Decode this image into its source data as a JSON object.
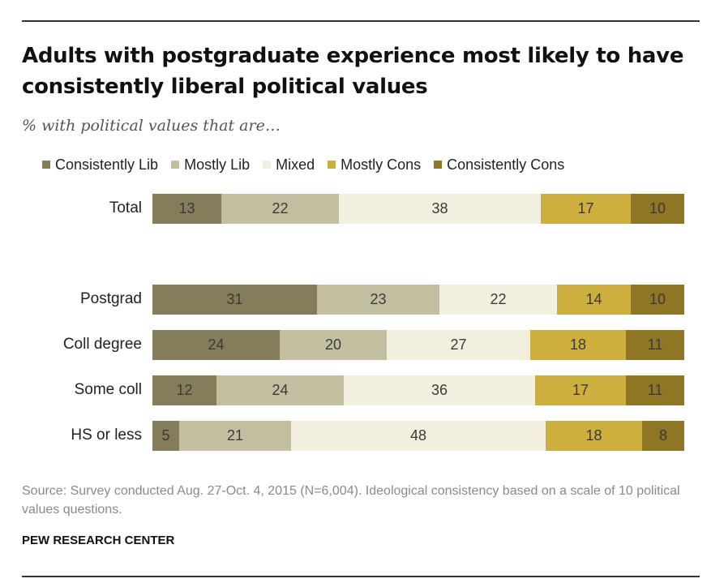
{
  "chart_data": {
    "type": "bar",
    "orientation": "horizontal-stacked",
    "title": "Adults with postgraduate  experience  most likely to have consistently  liberal political values",
    "subtitle": "% with political values that are…",
    "categories": [
      "Total",
      "Postgrad",
      "Coll degree",
      "Some coll",
      "HS or less"
    ],
    "series": [
      {
        "name": "Consistently Lib",
        "color": "#847c5a",
        "values": [
          13,
          31,
          24,
          12,
          5
        ]
      },
      {
        "name": "Mostly Lib",
        "color": "#c2bea0",
        "values": [
          22,
          23,
          20,
          24,
          21
        ]
      },
      {
        "name": "Mixed",
        "color": "#f3efde",
        "values": [
          38,
          22,
          27,
          36,
          48
        ]
      },
      {
        "name": "Mostly Cons",
        "color": "#ccaf3f",
        "values": [
          17,
          14,
          18,
          17,
          18
        ]
      },
      {
        "name": "Consistently Cons",
        "color": "#8f7624",
        "values": [
          10,
          10,
          11,
          11,
          8
        ]
      }
    ],
    "xlim": [
      0,
      100
    ],
    "legend": "top",
    "grid": false
  },
  "source": "Source: Survey conducted Aug. 27-Oct. 4, 2015 (N=6,004). Ideological consistency based on a scale of 10 political values questions.",
  "organization": "PEW RESEARCH CENTER"
}
